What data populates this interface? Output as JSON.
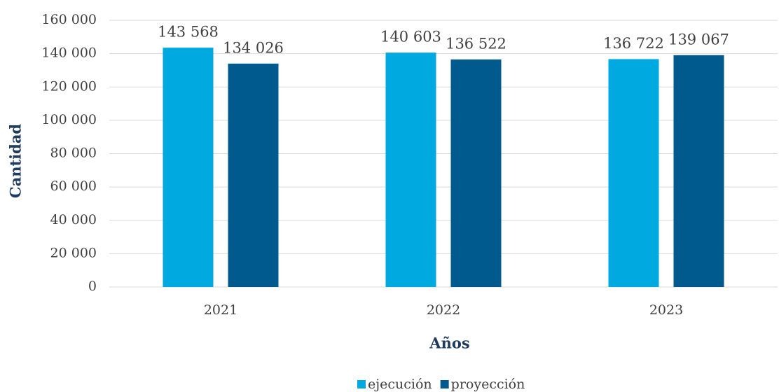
{
  "chart_data": {
    "type": "bar",
    "x_label": "Años",
    "y_label": "Cantidad",
    "categories": [
      "2021",
      "2022",
      "2023"
    ],
    "series": [
      {
        "name": "ejecución",
        "color": "#00a9e0",
        "values": [
          143568,
          140603,
          136722
        ],
        "value_labels": [
          "143 568",
          "140 603",
          "136 722"
        ]
      },
      {
        "name": "proyección",
        "color": "#005a8e",
        "values": [
          134026,
          136522,
          139067
        ],
        "value_labels": [
          "134 026",
          "136 522",
          "139 067"
        ]
      }
    ],
    "ylim": [
      0,
      160000
    ],
    "yticks": [
      0,
      {
        "value": 20000,
        "label": "20 000"
      },
      {
        "value": 40000,
        "label": "40 000"
      },
      {
        "value": 60000,
        "label": "60 000"
      },
      {
        "value": 80000,
        "label": "80 000"
      },
      {
        "value": 100000,
        "label": "100 000"
      },
      {
        "value": 120000,
        "label": "120 000"
      },
      {
        "value": 140000,
        "label": "140 000"
      },
      {
        "value": 160000,
        "label": "160 000"
      }
    ],
    "grid": true,
    "legend": "bottom"
  }
}
